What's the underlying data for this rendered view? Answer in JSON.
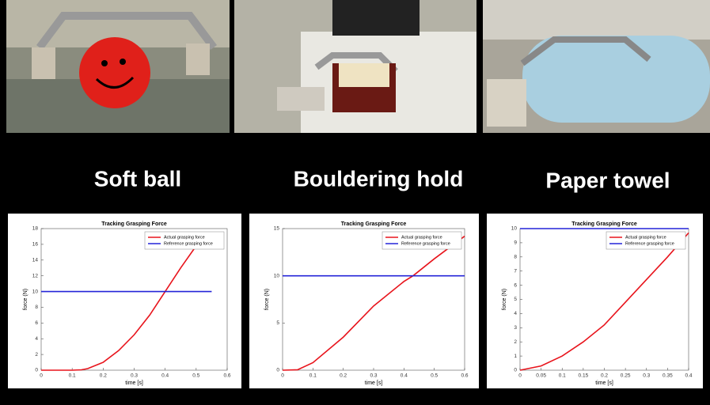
{
  "captions": [
    "Soft ball",
    "Bouldering hold",
    "Paper towel"
  ],
  "chart_data": [
    {
      "type": "line",
      "title": "Tracking Grasping Force",
      "xlabel": "time [s]",
      "ylabel": "force (N)",
      "xlim": [
        0,
        0.6
      ],
      "xticks": [
        0,
        0.1,
        0.2,
        0.3,
        0.4,
        0.5,
        0.6
      ],
      "ylim": [
        0,
        18
      ],
      "yticks": [
        0,
        2,
        4,
        6,
        8,
        10,
        12,
        14,
        16,
        18
      ],
      "grid": false,
      "legend": "upper right",
      "series": [
        {
          "name": "Actual grasping force",
          "color": "#e8141c",
          "x": [
            0,
            0.1,
            0.13,
            0.15,
            0.2,
            0.25,
            0.3,
            0.35,
            0.4,
            0.45,
            0.5,
            0.52
          ],
          "values": [
            0,
            0,
            0.05,
            0.2,
            1,
            2.5,
            4.5,
            7,
            10,
            13,
            15.8,
            16.8
          ]
        },
        {
          "name": "Reference grasping force",
          "color": "#2424d8",
          "x": [
            0,
            0.55
          ],
          "values": [
            10,
            10
          ]
        }
      ]
    },
    {
      "type": "line",
      "title": "Tracking Grasping Force",
      "xlabel": "time [s]",
      "ylabel": "force (N)",
      "xlim": [
        0,
        0.6
      ],
      "xticks": [
        0,
        0.1,
        0.2,
        0.3,
        0.4,
        0.5,
        0.6
      ],
      "ylim": [
        0,
        15
      ],
      "yticks": [
        0,
        5,
        10,
        15
      ],
      "grid": false,
      "legend": "upper right",
      "series": [
        {
          "name": "Actual grasping force",
          "color": "#e8141c",
          "x": [
            0,
            0.05,
            0.1,
            0.2,
            0.3,
            0.4,
            0.43,
            0.5,
            0.6
          ],
          "values": [
            0,
            0.05,
            0.8,
            3.5,
            6.8,
            9.4,
            10,
            11.8,
            14.2
          ]
        },
        {
          "name": "Reference grasping force",
          "color": "#2424d8",
          "x": [
            0,
            0.6
          ],
          "values": [
            10,
            10
          ]
        }
      ]
    },
    {
      "type": "line",
      "title": "Tracking Grasping Force",
      "xlabel": "time [s]",
      "ylabel": "force (N)",
      "xlim": [
        0,
        0.4
      ],
      "xticks": [
        0,
        0.05,
        0.1,
        0.15,
        0.2,
        0.25,
        0.3,
        0.35,
        0.4
      ],
      "ylim": [
        0,
        10
      ],
      "yticks": [
        0,
        1,
        2,
        3,
        4,
        5,
        6,
        7,
        8,
        9,
        10
      ],
      "grid": false,
      "legend": "upper right",
      "series": [
        {
          "name": "Actual grasping force",
          "color": "#e8141c",
          "x": [
            0,
            0.05,
            0.1,
            0.15,
            0.2,
            0.25,
            0.3,
            0.35,
            0.4
          ],
          "values": [
            0,
            0.3,
            1,
            2,
            3.2,
            4.8,
            6.4,
            8,
            9.7
          ]
        },
        {
          "name": "Reference grasping force",
          "color": "#2424d8",
          "x": [
            0,
            0.4
          ],
          "values": [
            10,
            10
          ]
        }
      ]
    }
  ]
}
